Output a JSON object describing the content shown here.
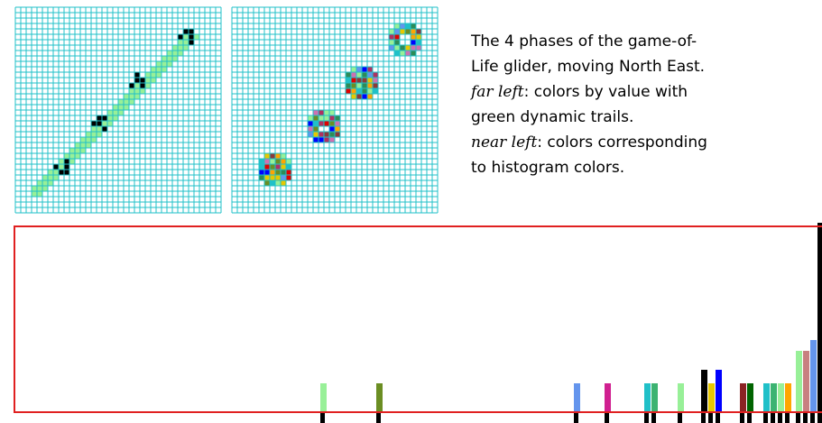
{
  "caption": {
    "line1": "The 4 phases of the game-of-",
    "line2": "Life glider, moving North East.",
    "far_left": {
      "label": "far left",
      "text": ":  colors by value with",
      "cont": "green dynamic trails."
    },
    "near_left": {
      "label": "near left",
      "text": ":  colors corresponding",
      "cont": "to histogram colors."
    }
  }
}
